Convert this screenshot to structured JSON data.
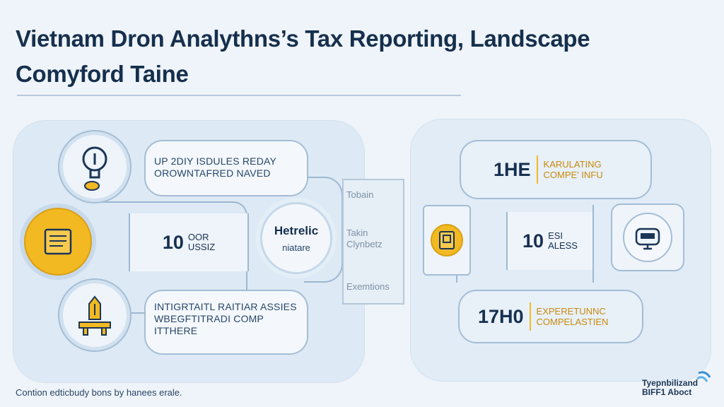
{
  "title": {
    "line1": "Vietnam Dron Analythns’s Tax Reporting, Landscape",
    "line2": "Comyford Taine"
  },
  "left_panel": {
    "top_bubble": "UP 2DIY ISDULES REDAY\nOROWNTAFRED NAVED",
    "middle_box": {
      "number": "10",
      "text": "OOR\nUSSIZ"
    },
    "bottom_bubble": "INTIGRTAITL RAITIAR ASSIES\nWBEGFTITRADI COMP\nITTHERE"
  },
  "center": {
    "circle_title": "Hetrelic",
    "circle_sub": "niatare",
    "column_labels": [
      "Tobain",
      "Takin\nClynbetz",
      "Exemtions"
    ]
  },
  "right_panel": {
    "top_box": {
      "number": "1HE",
      "text": "KARULATING\nCOMPE' INFU"
    },
    "middle_box": {
      "number": "10",
      "text": "ESI\nALESS"
    },
    "bottom_box": {
      "number": "17H0",
      "text": "EXPERETUNNC\nCOMPELASTIEN"
    }
  },
  "footer": {
    "note": "Contion edticbudy bons by hanees erale.",
    "logo_text": "Tyepnbilizand\nBIFF1 Aboct"
  },
  "colors": {
    "accent": "#f2b922",
    "navy": "#16304f",
    "outline": "#a4bdd6"
  },
  "icons": [
    "lightbulb-icon",
    "document-icon",
    "bridge-icon",
    "document-icon",
    "robot-monitor-icon",
    "logo-icon"
  ]
}
